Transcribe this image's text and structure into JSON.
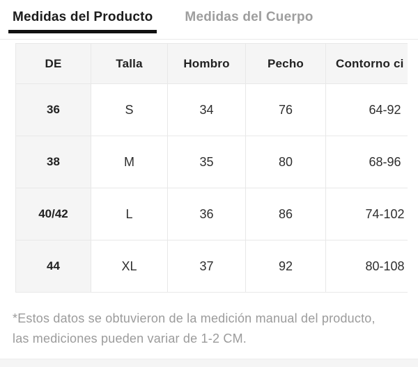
{
  "tabs": [
    {
      "label": "Medidas del Producto",
      "active": true
    },
    {
      "label": "Medidas del Cuerpo",
      "active": false
    }
  ],
  "size_table": {
    "columns": [
      "DE",
      "Talla",
      "Hombro",
      "Pecho",
      "Contorno ci"
    ],
    "rows": [
      [
        "36",
        "S",
        "34",
        "76",
        "64-92"
      ],
      [
        "38",
        "M",
        "35",
        "80",
        "68-96"
      ],
      [
        "40/42",
        "L",
        "36",
        "86",
        "74-102"
      ],
      [
        "44",
        "XL",
        "37",
        "92",
        "80-108"
      ]
    ]
  },
  "footnote": {
    "lines": [
      "*Estos datos se obtuvieron de la medición manual del producto,",
      "las mediciones pueden variar de 1-2 CM."
    ]
  },
  "colors": {
    "active_tab_text": "#1c1c1c",
    "inactive_tab_text": "#9e9e9e",
    "tab_underline": "#111111",
    "header_cell_bg": "#f5f5f5",
    "table_border": "#e8e8e8",
    "cell_text": "#2e2e2e",
    "footnote_text": "#9b9b9b",
    "bottom_band_bg": "#f5f5f5",
    "divider": "#eaeaea"
  }
}
